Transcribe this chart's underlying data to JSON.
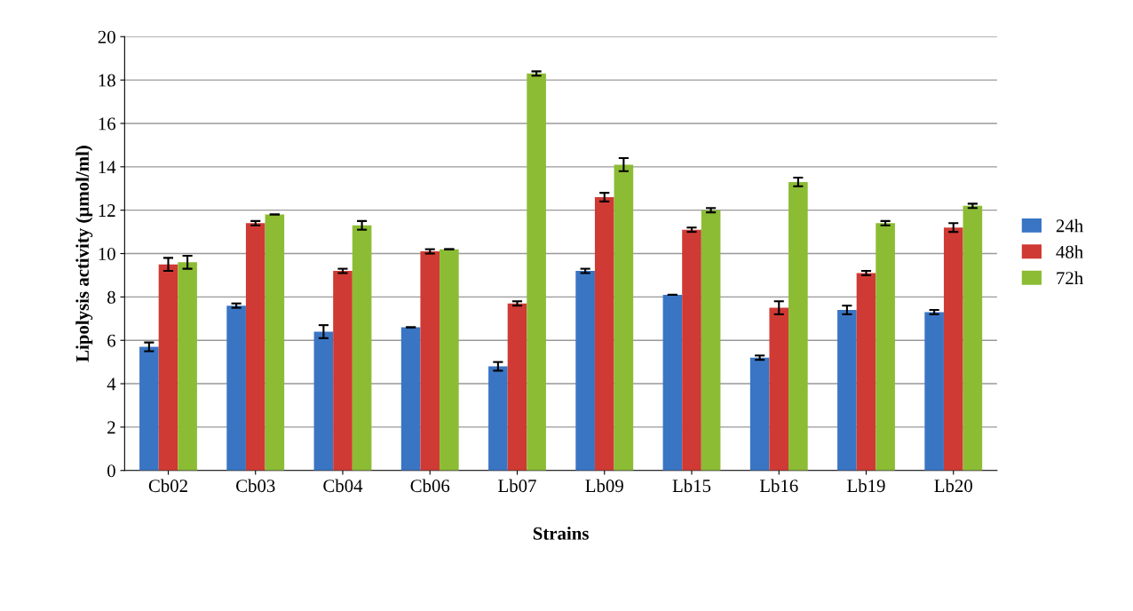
{
  "chart_data": {
    "type": "bar",
    "xlabel": "Strains",
    "ylabel": "Lipolysis activity (µmol/ml)",
    "categories": [
      "Cb02",
      "Cb03",
      "Cb04",
      "Cb06",
      "Lb07",
      "Lb09",
      "Lb15",
      "Lb16",
      "Lb19",
      "Lb20"
    ],
    "series": [
      {
        "name": "24h",
        "color": "#3a75c4",
        "values": [
          5.7,
          7.6,
          6.4,
          6.6,
          4.8,
          9.2,
          8.1,
          5.2,
          7.4,
          7.3
        ],
        "errors": [
          0.2,
          0.1,
          0.3,
          null,
          0.2,
          0.1,
          null,
          0.1,
          0.2,
          0.1
        ]
      },
      {
        "name": "48h",
        "color": "#d03a34",
        "values": [
          9.5,
          11.4,
          9.2,
          10.1,
          7.7,
          12.6,
          11.1,
          7.5,
          9.1,
          11.2
        ],
        "errors": [
          0.3,
          0.1,
          0.1,
          0.1,
          0.1,
          0.2,
          0.1,
          0.3,
          0.1,
          0.2
        ]
      },
      {
        "name": "72h",
        "color": "#8cbc34",
        "values": [
          9.6,
          11.8,
          11.3,
          10.2,
          18.3,
          14.1,
          12.0,
          13.3,
          11.4,
          12.2
        ],
        "errors": [
          0.3,
          null,
          0.2,
          null,
          0.1,
          0.3,
          0.1,
          0.2,
          0.1,
          0.1
        ]
      }
    ],
    "ylim": [
      0,
      20
    ],
    "yticks": [
      0,
      2,
      4,
      6,
      8,
      10,
      12,
      14,
      16,
      18,
      20
    ],
    "grid": "y",
    "legend": "right"
  }
}
